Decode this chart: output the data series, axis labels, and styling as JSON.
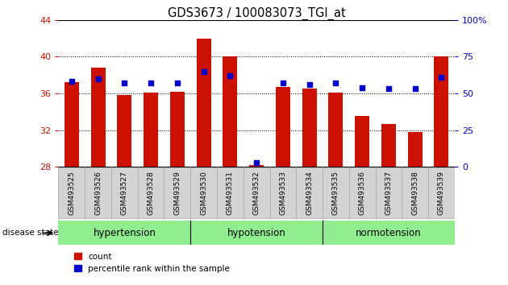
{
  "title": "GDS3673 / 100083073_TGI_at",
  "samples": [
    "GSM493525",
    "GSM493526",
    "GSM493527",
    "GSM493528",
    "GSM493529",
    "GSM493530",
    "GSM493531",
    "GSM493532",
    "GSM493533",
    "GSM493534",
    "GSM493535",
    "GSM493536",
    "GSM493537",
    "GSM493538",
    "GSM493539"
  ],
  "counts": [
    37.2,
    38.8,
    35.8,
    36.1,
    36.2,
    42.0,
    40.0,
    28.2,
    36.7,
    36.5,
    36.1,
    33.5,
    32.7,
    31.8,
    40.0
  ],
  "percentiles": [
    58,
    60,
    57,
    57,
    57,
    65,
    62,
    3,
    57,
    56,
    57,
    54,
    53,
    53,
    61
  ],
  "groups": [
    {
      "label": "hypertension",
      "start": 0,
      "end": 5
    },
    {
      "label": "hypotension",
      "start": 5,
      "end": 10
    },
    {
      "label": "normotension",
      "start": 10,
      "end": 15
    }
  ],
  "bar_color": "#cc1100",
  "marker_color": "#0000cc",
  "baseline": 28,
  "ylim": [
    28,
    44
  ],
  "yticks_left": [
    28,
    32,
    36,
    40,
    44
  ],
  "yticks_right": [
    0,
    25,
    50,
    75,
    100
  ],
  "tick_label_bg": "#d3d3d3",
  "group_color_light": "#c8f0c8",
  "group_color_mid": "#90ee90"
}
